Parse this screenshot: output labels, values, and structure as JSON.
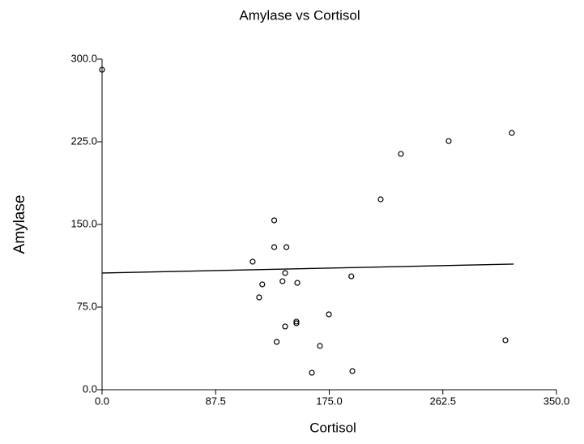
{
  "chart_data": {
    "type": "scatter",
    "title": "Amylase vs Cortisol",
    "xlabel": "Cortisol",
    "ylabel": "Amylase",
    "x": [
      0,
      116,
      132.6,
      132.6,
      142,
      123.4,
      121,
      141,
      139,
      150.4,
      134.5,
      141,
      149.7,
      149.7,
      174.7,
      167.8,
      161.6,
      192,
      192.8,
      214.6,
      230.2,
      267,
      310.7,
      315.6
    ],
    "y": [
      290.4,
      116.2,
      153.7,
      129.4,
      129.4,
      95.6,
      83.8,
      105.9,
      98.5,
      97,
      43.4,
      57.4,
      61.8,
      60.3,
      68.4,
      39.7,
      15.4,
      102.9,
      16.9,
      172.8,
      214,
      225.7,
      44.9,
      233
    ],
    "color": "#000000",
    "trend_line": {
      "x": [
        0,
        317
      ],
      "y": [
        105.9,
        114
      ],
      "color": "#000000"
    },
    "xlim": [
      0,
      350
    ],
    "xticks": [
      {
        "value": 0,
        "label": "0.0"
      },
      87.5,
      {
        "value": 175,
        "label": "175.0"
      },
      262.5,
      {
        "value": 350,
        "label": "350.0"
      }
    ],
    "ylim": [
      0,
      300
    ],
    "yticks": [
      {
        "value": 0,
        "label": "0.0"
      },
      {
        "value": 75,
        "label": "75.0"
      },
      {
        "value": 150,
        "label": "150.0"
      },
      {
        "value": 225,
        "label": "225.0"
      },
      {
        "value": 300,
        "label": "300.0"
      }
    ],
    "grid": false
  }
}
